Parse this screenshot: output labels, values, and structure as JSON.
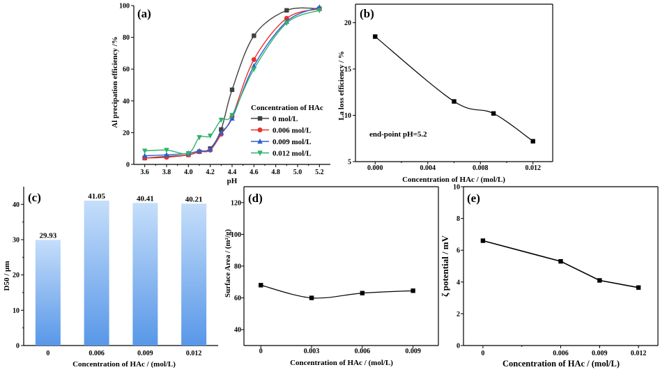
{
  "chart_data": [
    {
      "panel": "(a)",
      "type": "line",
      "xlabel": "pH",
      "ylabel": "Al precipation efficiency /%",
      "xlim": [
        3.5,
        5.3
      ],
      "ylim": [
        0,
        100
      ],
      "xticks": [
        "3.6",
        "3.8",
        "4.0",
        "4.2",
        "4.4",
        "4.6",
        "4.8",
        "5.0",
        "5.2"
      ],
      "yticks": [
        "0",
        "20",
        "40",
        "60",
        "80",
        "100"
      ],
      "legend_title": "Concentration of HAc",
      "legend_position": "center-right",
      "colors": [
        "#404040",
        "#e8322c",
        "#2b5fd4",
        "#2fb36a"
      ],
      "markers": [
        "square",
        "circle",
        "triangle-up",
        "triangle-down"
      ],
      "series": [
        {
          "name": "0 mol/L",
          "x": [
            3.6,
            3.8,
            4.0,
            4.1,
            4.2,
            4.3,
            4.4,
            4.6,
            4.9,
            5.2
          ],
          "y": [
            4,
            5,
            6,
            8,
            10,
            22,
            47,
            81,
            97,
            98
          ]
        },
        {
          "name": "0.006 mol/L",
          "x": [
            3.6,
            3.8,
            4.0,
            4.1,
            4.2,
            4.3,
            4.4,
            4.6,
            4.9,
            5.2
          ],
          "y": [
            4,
            4.5,
            6,
            8,
            9,
            19,
            30,
            66,
            92,
            98
          ]
        },
        {
          "name": "0.009 mol/L",
          "x": [
            3.6,
            3.8,
            4.0,
            4.1,
            4.2,
            4.3,
            4.4,
            4.6,
            4.9,
            5.2
          ],
          "y": [
            5.5,
            6,
            7,
            8.5,
            9.5,
            20,
            29,
            62,
            90,
            99
          ]
        },
        {
          "name": "0.012 mol/L",
          "x": [
            3.6,
            3.8,
            4.0,
            4.1,
            4.2,
            4.3,
            4.4,
            4.6,
            4.9,
            5.2
          ],
          "y": [
            8.5,
            9,
            7,
            17,
            18,
            28,
            31,
            60,
            89,
            97
          ]
        }
      ]
    },
    {
      "panel": "(b)",
      "type": "line",
      "xlabel": "Concentration of HAc / (mol/L)",
      "ylabel": "La loss efficiency / %",
      "xlim": [
        -0.0015,
        0.0135
      ],
      "ylim": [
        5,
        22
      ],
      "xticks": [
        "0.000",
        "0.004",
        "0.008",
        "0.012"
      ],
      "yticks": [
        "5",
        "10",
        "15",
        "20"
      ],
      "annotation": "end-point pH=5.2",
      "x": [
        0,
        0.006,
        0.009,
        0.012
      ],
      "y": [
        18.5,
        11.5,
        10.2,
        7.2
      ]
    },
    {
      "panel": "(c)",
      "type": "bar",
      "xlabel": "Concentration of HAc / (mol/L)",
      "ylabel": "D50 / μm",
      "ylim": [
        0,
        45
      ],
      "categories": [
        "0",
        "0.006",
        "0.009",
        "0.012"
      ],
      "yticks": [
        "0",
        "10",
        "20",
        "30",
        "40"
      ],
      "values": [
        29.93,
        41.05,
        40.41,
        40.21
      ],
      "value_labels": [
        "29.93",
        "41.05",
        "40.41",
        "40.21"
      ],
      "bar_color_top": "#c5defa",
      "bar_color_bottom": "#5897e8"
    },
    {
      "panel": "(d)",
      "type": "line",
      "xlabel": "Concentration of HAc / (mol/L)",
      "ylabel": "Surface Area / (m²/g)",
      "xlim": [
        -0.001,
        0.0105
      ],
      "ylim": [
        30,
        130
      ],
      "xticks": [
        "0",
        "0.003",
        "0.006",
        "0.009"
      ],
      "yticks": [
        "40",
        "60",
        "80",
        "100",
        "120"
      ],
      "x": [
        0,
        0.003,
        0.006,
        0.009
      ],
      "y": [
        68,
        60,
        63,
        64.5
      ]
    },
    {
      "panel": "(e)",
      "type": "line",
      "xlabel": "Concentration of HAc / (mol/L)",
      "ylabel": "ζ potential / mV",
      "xlim": [
        -0.0015,
        0.0135
      ],
      "ylim": [
        0,
        10
      ],
      "xticks": [
        "0",
        "0.006",
        "0.009",
        "0.012"
      ],
      "yticks": [
        "0",
        "2",
        "4",
        "6",
        "8",
        "10"
      ],
      "x": [
        0,
        0.006,
        0.009,
        0.012
      ],
      "y": [
        6.6,
        5.3,
        4.1,
        3.65
      ]
    }
  ]
}
